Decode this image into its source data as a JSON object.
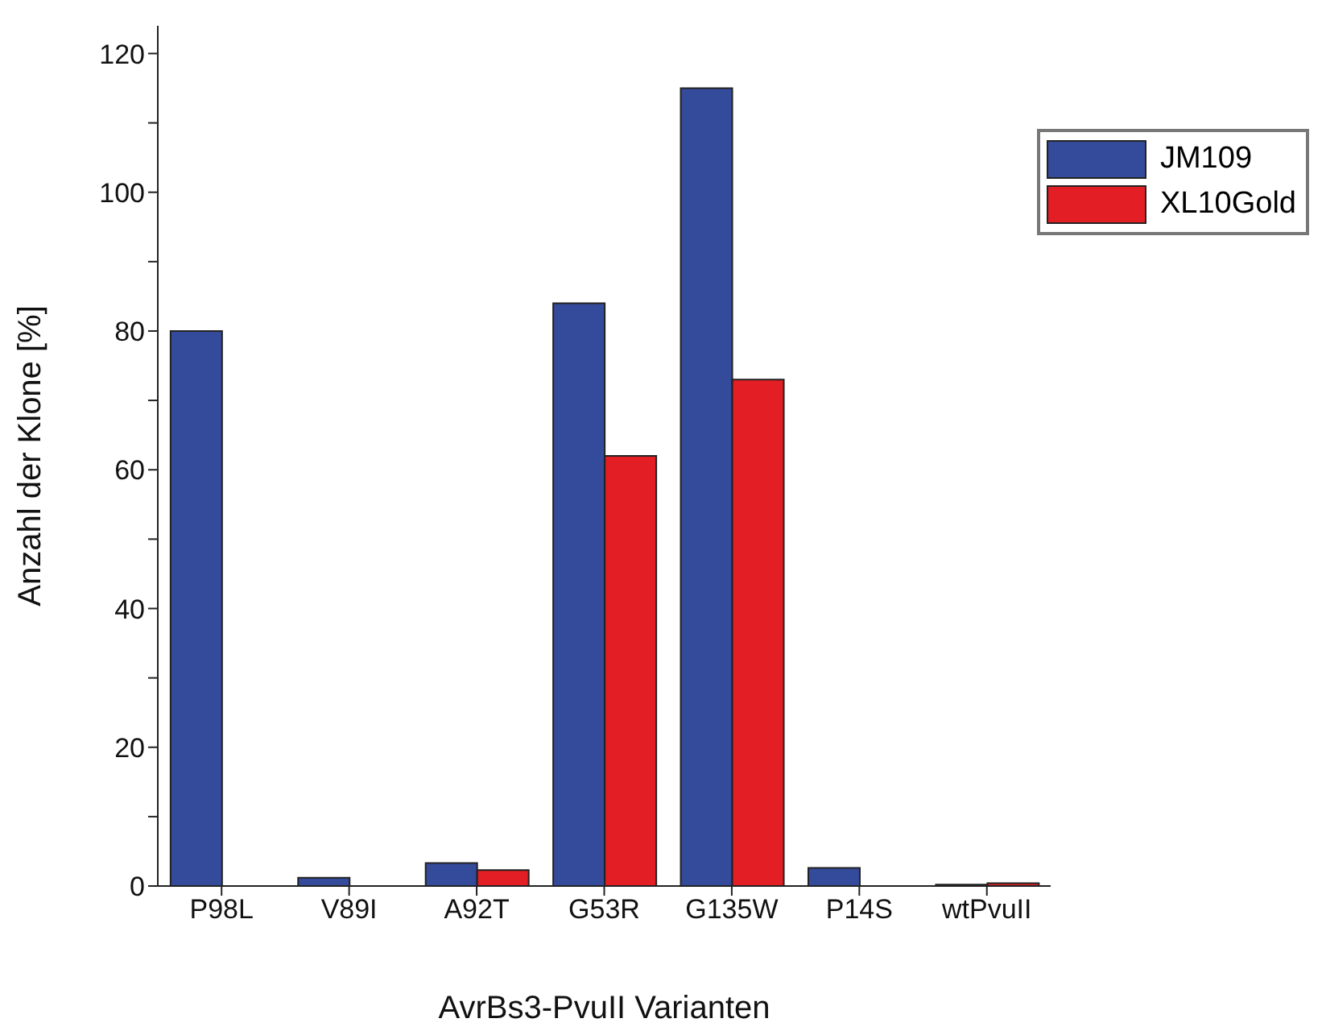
{
  "chart_data": {
    "type": "bar",
    "xlabel": "AvrBs3-PvuII Varianten",
    "ylabel": "Anzahl der Klone [%]",
    "categories": [
      "P98L",
      "V89I",
      "A92T",
      "G53R",
      "G135W",
      "P14S",
      "wtPvuII"
    ],
    "series": [
      {
        "name": "JM109",
        "color": "#344a9a",
        "values": [
          80,
          1.2,
          3.3,
          84,
          115,
          2.6,
          0.2
        ]
      },
      {
        "name": "XL10Gold",
        "color": "#e31e24",
        "values": [
          0,
          0,
          2.3,
          62,
          73,
          0,
          0.4
        ]
      }
    ],
    "ylim": [
      0,
      124
    ],
    "yticks": [
      0,
      {
        "value": 10,
        "label": null
      },
      20,
      {
        "value": 30,
        "label": null
      },
      40,
      {
        "value": 50,
        "label": null
      },
      60,
      {
        "value": 70,
        "label": null
      },
      80,
      {
        "value": 90,
        "label": null
      },
      100,
      {
        "value": 110,
        "label": null
      },
      120
    ],
    "legend": "top right",
    "grid": false
  }
}
